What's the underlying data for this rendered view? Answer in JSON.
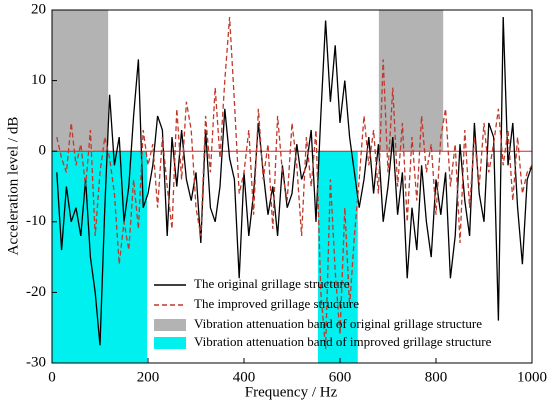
{
  "chart_data": {
    "type": "line",
    "x_label": "Frequency / Hz",
    "y_label": "Acceleration level / dB",
    "xlim": [
      0,
      1000
    ],
    "ylim": [
      -30,
      20
    ],
    "xticks": [
      0,
      200,
      400,
      600,
      800,
      1000
    ],
    "yticks": [
      -30,
      -20,
      -10,
      0,
      10,
      20
    ],
    "x": [
      10,
      20,
      30,
      40,
      50,
      60,
      70,
      80,
      90,
      100,
      110,
      120,
      130,
      140,
      150,
      160,
      170,
      180,
      190,
      200,
      210,
      220,
      230,
      240,
      250,
      260,
      270,
      280,
      290,
      300,
      310,
      320,
      330,
      340,
      350,
      360,
      370,
      380,
      390,
      400,
      410,
      420,
      430,
      440,
      450,
      460,
      470,
      480,
      490,
      500,
      510,
      520,
      530,
      540,
      550,
      560,
      570,
      580,
      590,
      600,
      610,
      620,
      630,
      640,
      650,
      660,
      670,
      680,
      690,
      700,
      710,
      720,
      730,
      740,
      750,
      760,
      770,
      780,
      790,
      800,
      810,
      820,
      830,
      840,
      850,
      860,
      870,
      880,
      890,
      900,
      910,
      920,
      930,
      940,
      950,
      960,
      970,
      980,
      990,
      1000
    ],
    "reference_line": {
      "value": 0,
      "color": "#e02020"
    },
    "series": [
      {
        "name": "The original grillage structure",
        "color": "#000000",
        "dash": false,
        "values": [
          -3,
          -14,
          -5,
          -10,
          -8,
          -12,
          -4,
          -15,
          -20,
          -27.5,
          -8,
          8,
          -2,
          2,
          -10,
          -5,
          5,
          13,
          -8,
          -6,
          -2,
          5,
          3,
          -12,
          2,
          -5,
          3,
          -4,
          -7,
          -3,
          -13,
          3,
          -8,
          -10,
          -5,
          6,
          -1,
          -4,
          -18,
          -3,
          -12,
          -6,
          4,
          -3,
          -9,
          -5,
          -12,
          -2,
          -8,
          -6,
          1,
          -4,
          -2,
          3,
          -10,
          5,
          18.5,
          7,
          15,
          4,
          10,
          2,
          -3,
          -8,
          -4,
          2,
          -6,
          1,
          -10,
          -5,
          2,
          -9,
          -3,
          -18,
          -8,
          -14,
          -2,
          -10,
          -15,
          -4,
          -9,
          -3,
          -18,
          -12,
          1,
          -7,
          -12,
          4,
          -6,
          -10,
          4,
          2,
          -24,
          19,
          -2,
          4,
          -8,
          -16,
          -4,
          -2
        ]
      },
      {
        "name": "The improved grillage structure",
        "color": "#c0392b",
        "dash": true,
        "values": [
          2,
          -1,
          -3,
          4,
          -2,
          1,
          -5,
          3,
          -12,
          -3,
          2,
          -1,
          -6,
          -16,
          -10,
          -14,
          -4,
          -11,
          3,
          -2,
          1,
          -8,
          2,
          -5,
          -11,
          6,
          -4,
          7,
          3,
          -8,
          -12,
          5,
          -3,
          9,
          -1,
          10,
          19,
          7,
          -6,
          -3,
          3,
          -9,
          6,
          -4,
          1,
          -11,
          5,
          -3,
          -7,
          4,
          -2,
          -12,
          2,
          -5,
          3,
          -20,
          -28,
          -4,
          -17,
          -26,
          -8,
          -22,
          -12,
          -4,
          5,
          -2,
          3,
          -6,
          13,
          -3,
          9,
          -5,
          4,
          -10,
          2,
          -7,
          5,
          -3,
          1,
          -9,
          2,
          6,
          -5,
          1,
          -13,
          3,
          -8,
          2,
          -5,
          4,
          -3,
          1,
          6,
          -2,
          3,
          -7,
          2,
          -6,
          -3,
          -2
        ]
      }
    ],
    "bands": [
      {
        "name": "Vibration attenuation band of original grillage structure",
        "color": "#b3b3b3",
        "y_range": [
          0,
          20
        ],
        "ranges": [
          [
            0,
            117
          ],
          [
            681,
            815
          ]
        ]
      },
      {
        "name": "Vibration attenuation band of improved grillage structure",
        "color": "#00f0f0",
        "y_range": [
          -30,
          0
        ],
        "ranges": [
          [
            0,
            198
          ],
          [
            554,
            637
          ]
        ]
      }
    ]
  }
}
